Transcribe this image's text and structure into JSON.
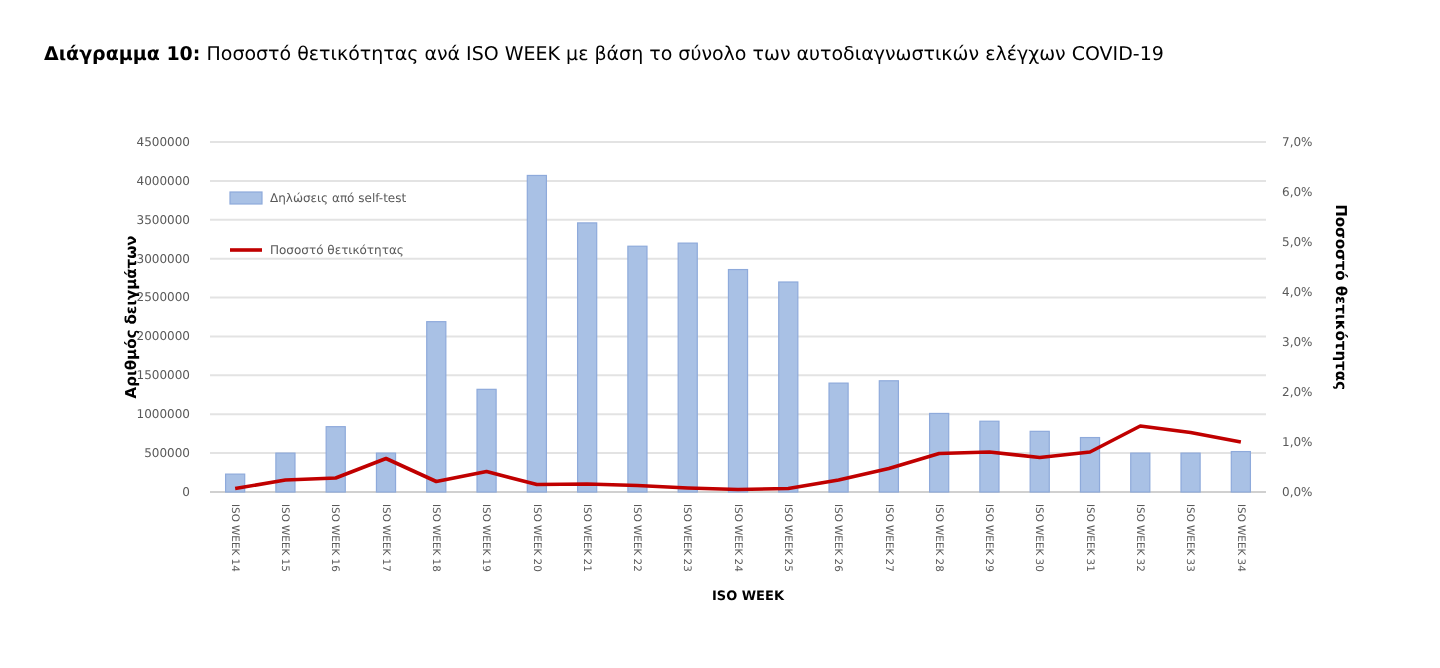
{
  "chart_data": {
    "type": "bar",
    "title": "Διάγραμμα 10: Ποσοστό θετικότητας ανά ISO WEEK με βάση το σύνολο των αυτοδιαγνωστικών ελέγχων COVID-19",
    "xlabel": "ISO WEEK",
    "ylabel": "Αριθμός δειγμάτων",
    "y2label": "Ποσοστό θετικότητας",
    "categories": [
      "ISO WEEK 14",
      "ISO WEEK 15",
      "ISO WEEK 16",
      "ISO WEEK 17",
      "ISO WEEK 18",
      "ISO WEEK 19",
      "ISO WEEK 20",
      "ISO WEEK 21",
      "ISO WEEK 22",
      "ISO WEEK 23",
      "ISO WEEK 24",
      "ISO WEEK 25",
      "ISO WEEK 26",
      "ISO WEEK 27",
      "ISO WEEK 28",
      "ISO WEEK 29",
      "ISO WEEK 30",
      "ISO WEEK 31",
      "ISO WEEK 32",
      "ISO WEEK 33",
      "ISO WEEK 34"
    ],
    "series": [
      {
        "name": "Δηλώσεις από self-test",
        "color": "#a9c1e5",
        "values": [
          230000,
          500000,
          840000,
          500000,
          2190000,
          1320000,
          4070000,
          3460000,
          3160000,
          3200000,
          2860000,
          2700000,
          1400000,
          1430000,
          1010000,
          910000,
          780000,
          700000,
          500000,
          500000,
          520000
        ]
      },
      {
        "name": "Ποσοστό θετικότητας",
        "type": "line",
        "axis": "y2",
        "color": "#c00000",
        "values": [
          0.07,
          0.24,
          0.28,
          0.67,
          0.21,
          0.41,
          0.15,
          0.16,
          0.13,
          0.08,
          0.05,
          0.07,
          0.24,
          0.47,
          0.77,
          0.8,
          0.69,
          0.8,
          1.32,
          1.19,
          1.0
        ]
      }
    ],
    "ylim": [
      0,
      4500000
    ],
    "yticks": [
      0,
      500000,
      1000000,
      1500000,
      2000000,
      2500000,
      3000000,
      3500000,
      4000000,
      4500000
    ],
    "y2lim": [
      0,
      7
    ],
    "y2ticks": [
      {
        "value": 0,
        "label": "0,0%"
      },
      {
        "value": 1,
        "label": "1,0%"
      },
      {
        "value": 2,
        "label": "2,0%"
      },
      {
        "value": 3,
        "label": "3,0%"
      },
      {
        "value": 4,
        "label": "4,0%"
      },
      {
        "value": 5,
        "label": "5,0%"
      },
      {
        "value": 6,
        "label": "6,0%"
      },
      {
        "value": 7,
        "label": "7,0%"
      }
    ],
    "grid": "y",
    "legend": "top left",
    "marker": "none",
    "line_style": "solid"
  }
}
